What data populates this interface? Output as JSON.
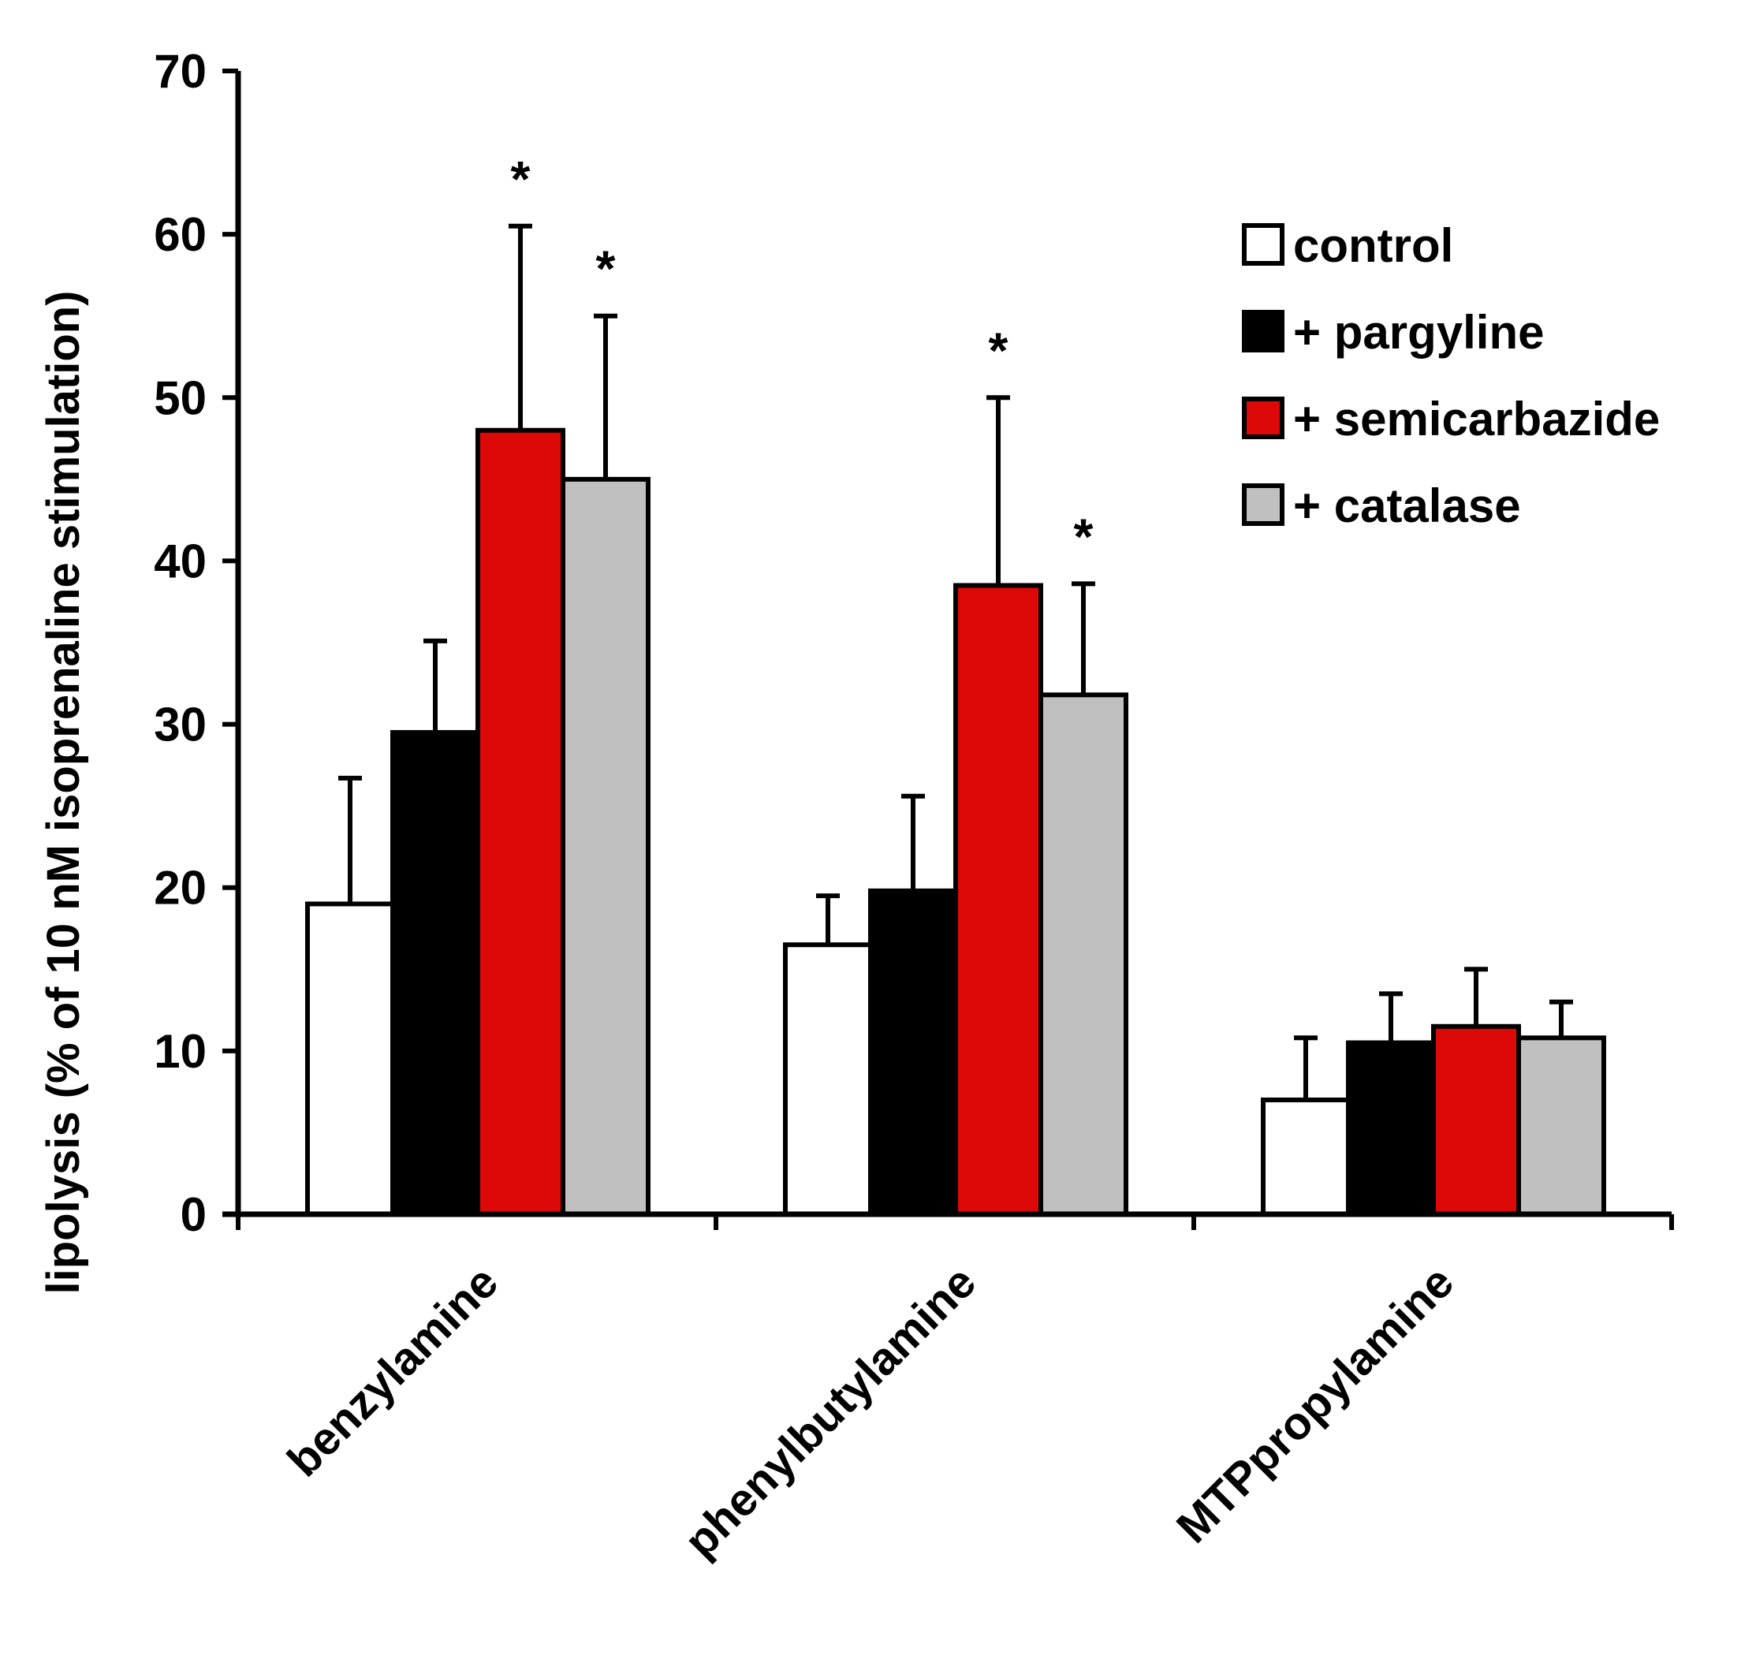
{
  "chart_data": {
    "type": "bar",
    "title": "",
    "xlabel": "",
    "ylabel": "lipolysis (% of 10 nM isoprenaline  stimulation)",
    "ylim": [
      0,
      70
    ],
    "yticks": [
      "0",
      "10",
      "20",
      "30",
      "40",
      "50",
      "60",
      "70"
    ],
    "categories": [
      "benzylamine",
      "phenylbutylamine",
      "MTPpropylamine"
    ],
    "series": [
      {
        "name": "control",
        "color": "#ffffff",
        "values": [
          19,
          16.5,
          7
        ],
        "errors": [
          7.7,
          3,
          3.8
        ],
        "significance": [
          "",
          "",
          ""
        ]
      },
      {
        "name": "+ pargyline",
        "color": "#000000",
        "values": [
          29.5,
          19.8,
          10.5
        ],
        "errors": [
          5.6,
          5.8,
          3
        ],
        "significance": [
          "",
          "",
          ""
        ]
      },
      {
        "name": "+ semicarbazide",
        "color": "#dd0808",
        "values": [
          48,
          38.5,
          11.5
        ],
        "errors": [
          12.5,
          11.5,
          3.5
        ],
        "significance": [
          "*",
          "*",
          ""
        ]
      },
      {
        "name": "+ catalase",
        "color": "#c0c0c0",
        "values": [
          45,
          31.8,
          10.8
        ],
        "errors": [
          10,
          6.8,
          2.2
        ],
        "significance": [
          "*",
          "*",
          ""
        ]
      }
    ],
    "legend_position": "top-right",
    "grid": false
  }
}
